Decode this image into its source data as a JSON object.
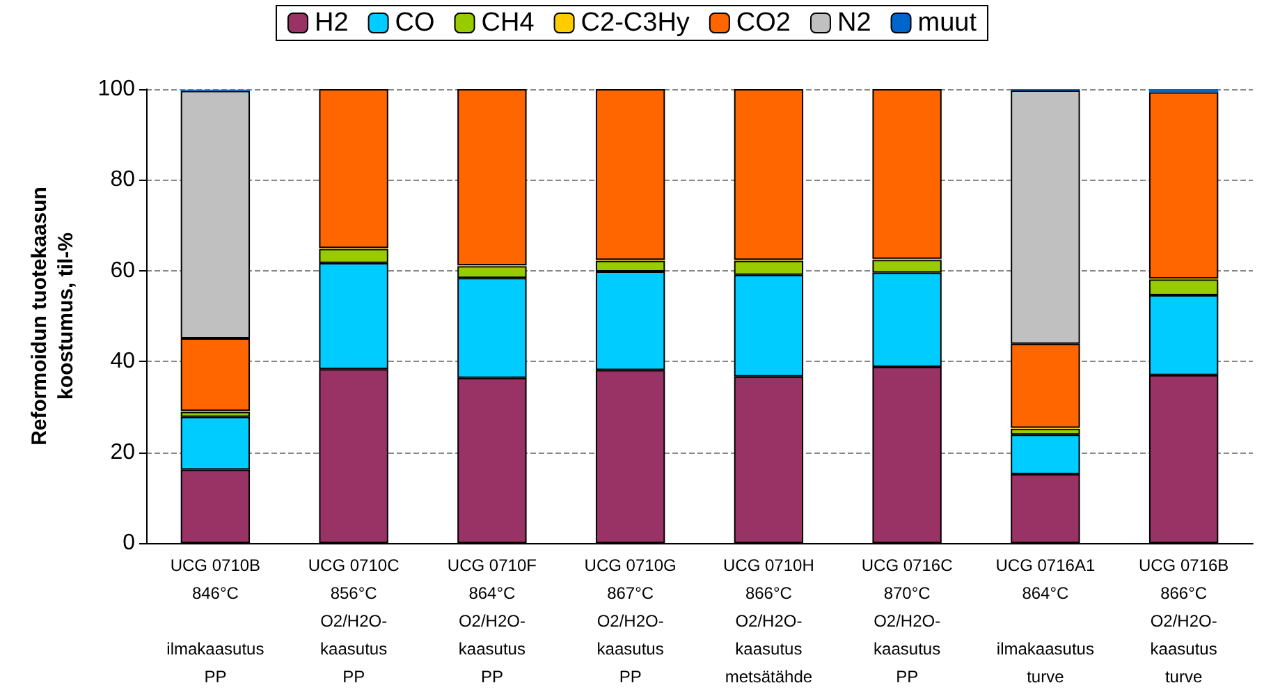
{
  "chart_data": {
    "type": "bar",
    "stacked": true,
    "ylabel": "Reformoidun tuotekaasun\nkoostumus, til-%",
    "categories": [
      "UCG 0710B\n846°C\n\nilmakaasutus\nPP",
      "UCG 0710C\n856°C\nO2/H2O-\nkaasutus\nPP",
      "UCG 0710F\n864°C\nO2/H2O-\nkaasutus\nPP",
      "UCG 0710G\n867°C\nO2/H2O-\nkaasutus\nPP",
      "UCG 0710H\n866°C\nO2/H2O-\nkaasutus\nmetsätähde",
      "UCG 0716C\n870°C\nO2/H2O-\nkaasutus\nPP",
      "UCG 0716A1\n864°C\n\nilmakaasutus\nturve",
      "UCG 0716B\n866°C\nO2/H2O-\nkaasutus\nturve"
    ],
    "series": [
      {
        "name": "H2",
        "color": "#993366",
        "values": [
          16.2,
          38.3,
          36.4,
          38.1,
          36.7,
          38.8,
          15.2,
          37.0
        ]
      },
      {
        "name": "CO",
        "color": "#00ccff",
        "values": [
          11.6,
          23.4,
          22.0,
          21.7,
          22.4,
          20.8,
          8.7,
          17.6
        ]
      },
      {
        "name": "CH4",
        "color": "#99cc00",
        "values": [
          1.1,
          3.1,
          2.6,
          2.4,
          3.1,
          2.8,
          1.3,
          3.5
        ]
      },
      {
        "name": "C2-C3Hy",
        "color": "#ffcc00",
        "values": [
          0.2,
          0.2,
          0.2,
          0.2,
          0.2,
          0.2,
          0.2,
          0.2
        ]
      },
      {
        "name": "CO2",
        "color": "#ff6600",
        "values": [
          16.0,
          35.0,
          38.8,
          37.6,
          37.6,
          37.4,
          18.5,
          41.0
        ]
      },
      {
        "name": "N2",
        "color": "#c0c0c0",
        "values": [
          54.5,
          0,
          0,
          0,
          0,
          0,
          55.8,
          0
        ]
      },
      {
        "name": "muut",
        "color": "#0066cc",
        "values": [
          0.3,
          0,
          0,
          0,
          0,
          0,
          0.3,
          0.7
        ]
      }
    ],
    "ylim": [
      0,
      100
    ],
    "yticks": [
      0,
      20,
      40,
      60,
      80,
      100
    ],
    "grid": "y",
    "legend": "top"
  }
}
